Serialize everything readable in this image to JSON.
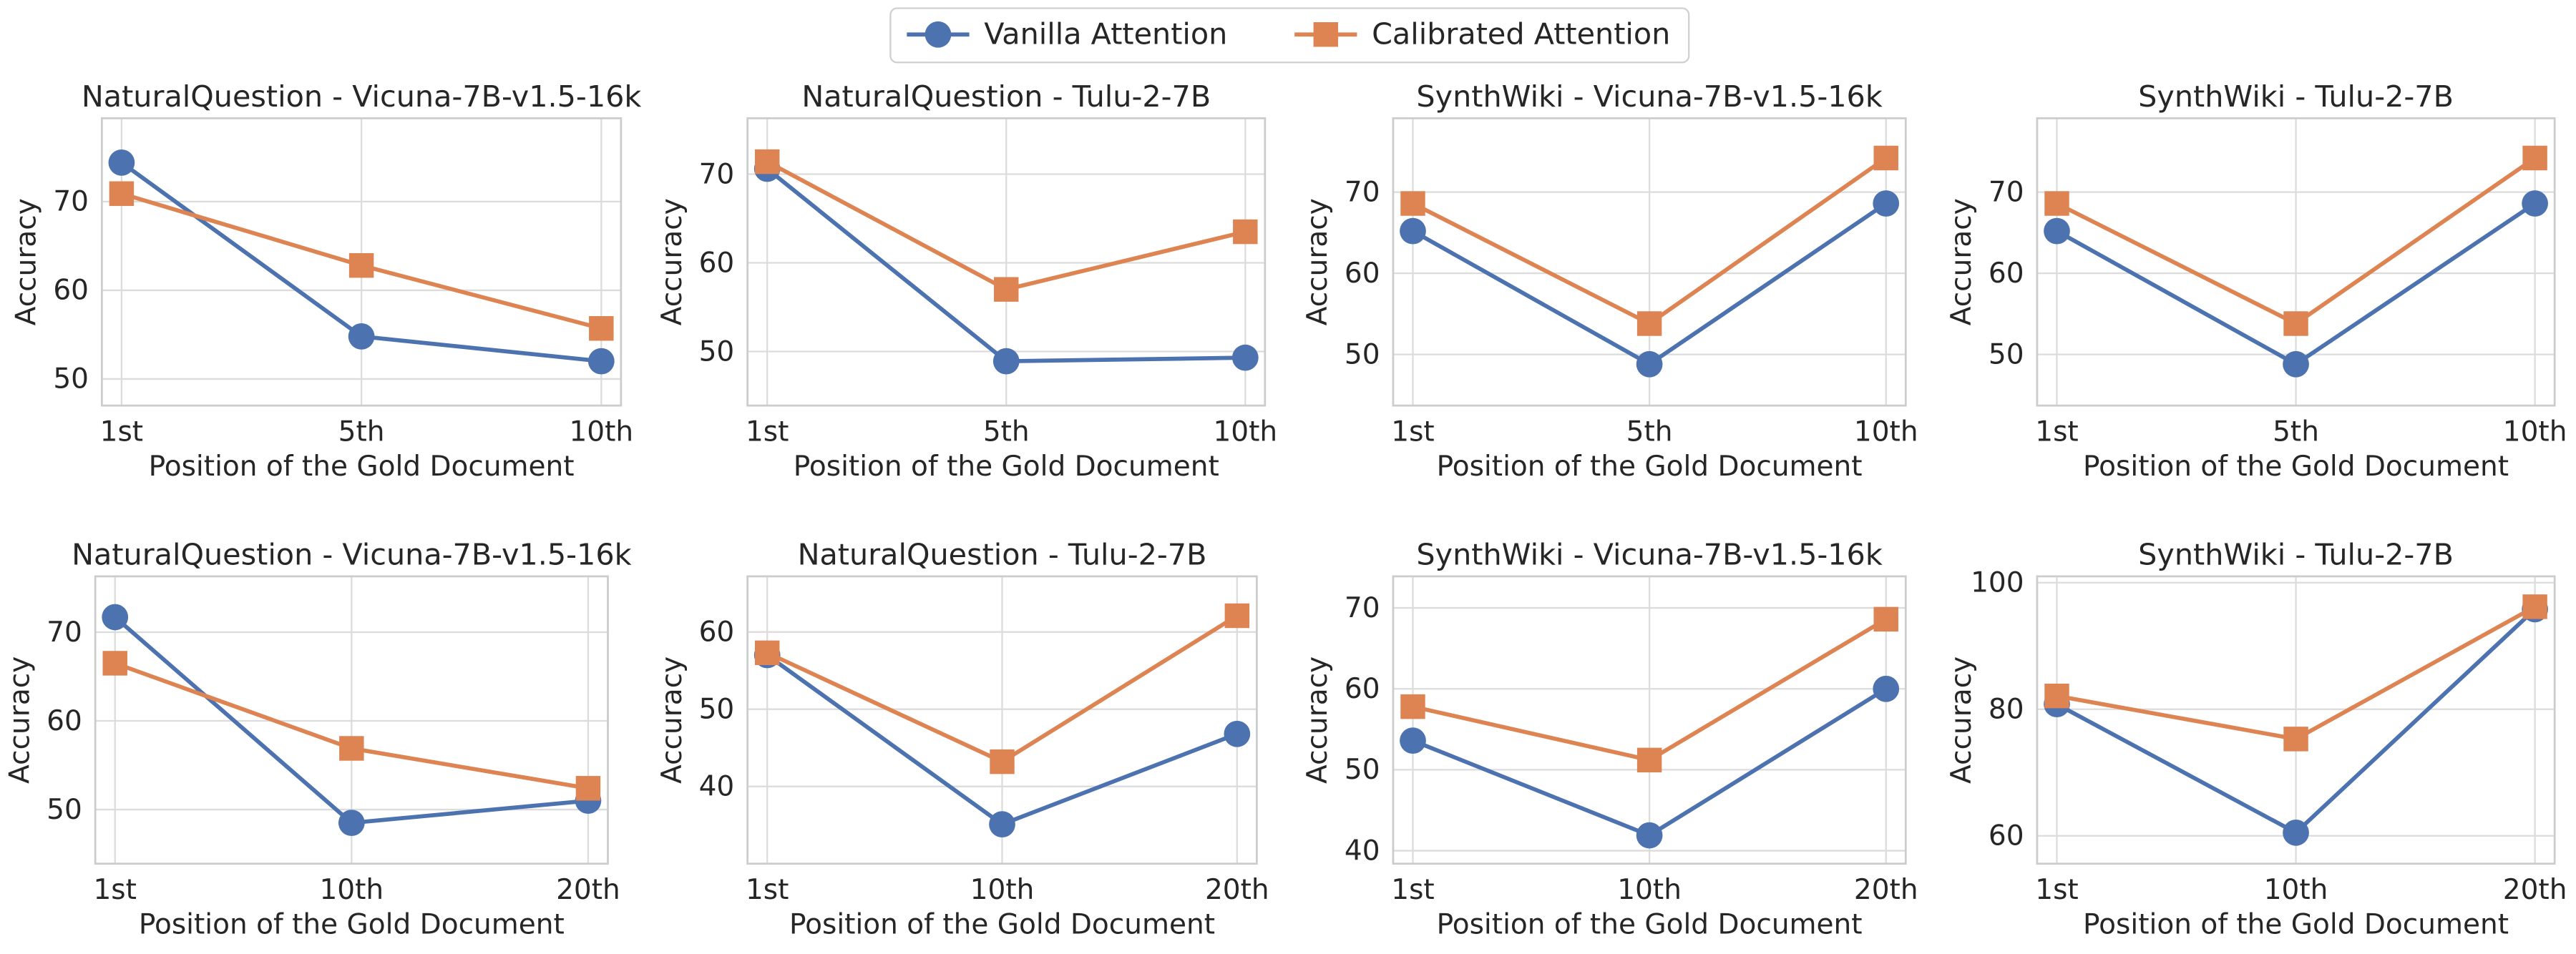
{
  "chart_data": [
    {
      "type": "line",
      "title": "NaturalQuestion - Vicuna-7B-v1.5-16k",
      "xlabel": "Position of the Gold Document",
      "ylabel": "Accuracy",
      "categories": [
        "1st",
        "5th",
        "10th"
      ],
      "series": [
        {
          "name": "Vanilla Attention",
          "color": "#4c72b0",
          "marker": "circle",
          "values": [
            74.4,
            54.8,
            52.0
          ]
        },
        {
          "name": "Calibrated Attention",
          "color": "#dd8452",
          "marker": "square",
          "values": [
            70.9,
            62.8,
            55.7
          ]
        }
      ],
      "ylim": [
        47.0,
        79.4
      ],
      "yticks": [
        50,
        60,
        70
      ],
      "grid": true
    },
    {
      "type": "line",
      "title": "NaturalQuestion - Tulu-2-7B",
      "xlabel": "Position of the Gold Document",
      "ylabel": "Accuracy",
      "categories": [
        "1st",
        "5th",
        "10th"
      ],
      "series": [
        {
          "name": "Vanilla Attention",
          "color": "#4c72b0",
          "marker": "circle",
          "values": [
            70.6,
            48.9,
            49.3
          ]
        },
        {
          "name": "Calibrated Attention",
          "color": "#dd8452",
          "marker": "square",
          "values": [
            71.4,
            57.0,
            63.5
          ]
        }
      ],
      "ylim": [
        43.9,
        76.3
      ],
      "yticks": [
        50,
        60,
        70
      ],
      "grid": true
    },
    {
      "type": "line",
      "title": "SynthWiki - Vicuna-7B-v1.5-16k",
      "xlabel": "Position of the Gold Document",
      "ylabel": "Accuracy",
      "categories": [
        "1st",
        "5th",
        "10th"
      ],
      "series": [
        {
          "name": "Vanilla Attention",
          "color": "#4c72b0",
          "marker": "circle",
          "values": [
            65.2,
            48.8,
            68.6
          ]
        },
        {
          "name": "Calibrated Attention",
          "color": "#dd8452",
          "marker": "square",
          "values": [
            68.6,
            53.8,
            74.2
          ]
        }
      ],
      "ylim": [
        43.7,
        79.1
      ],
      "yticks": [
        50,
        60,
        70
      ],
      "grid": true
    },
    {
      "type": "line",
      "title": "SynthWiki - Tulu-2-7B",
      "xlabel": "Position of the Gold Document",
      "ylabel": "Accuracy",
      "categories": [
        "1st",
        "5th",
        "10th"
      ],
      "series": [
        {
          "name": "Vanilla Attention",
          "color": "#4c72b0",
          "marker": "circle",
          "values": [
            65.2,
            48.8,
            68.6
          ]
        },
        {
          "name": "Calibrated Attention",
          "color": "#dd8452",
          "marker": "square",
          "values": [
            68.6,
            53.8,
            74.2
          ]
        }
      ],
      "ylim": [
        43.7,
        79.1
      ],
      "yticks": [
        50,
        60,
        70
      ],
      "grid": true
    },
    {
      "type": "line",
      "title": "NaturalQuestion - Vicuna-7B-v1.5-16k",
      "xlabel": "Position of the Gold Document",
      "ylabel": "Accuracy",
      "categories": [
        "1st",
        "10th",
        "20th"
      ],
      "series": [
        {
          "name": "Vanilla Attention",
          "color": "#4c72b0",
          "marker": "circle",
          "values": [
            71.7,
            48.5,
            51.0
          ]
        },
        {
          "name": "Calibrated Attention",
          "color": "#dd8452",
          "marker": "square",
          "values": [
            66.5,
            56.9,
            52.4
          ]
        }
      ],
      "ylim": [
        43.9,
        76.3
      ],
      "yticks": [
        50,
        60,
        70
      ],
      "grid": true
    },
    {
      "type": "line",
      "title": "NaturalQuestion - Tulu-2-7B",
      "xlabel": "Position of the Gold Document",
      "ylabel": "Accuracy",
      "categories": [
        "1st",
        "10th",
        "20th"
      ],
      "series": [
        {
          "name": "Vanilla Attention",
          "color": "#4c72b0",
          "marker": "circle",
          "values": [
            57.0,
            35.1,
            46.8
          ]
        },
        {
          "name": "Calibrated Attention",
          "color": "#dd8452",
          "marker": "square",
          "values": [
            57.3,
            43.2,
            62.1
          ]
        }
      ],
      "ylim": [
        30.0,
        67.2
      ],
      "yticks": [
        40,
        50,
        60
      ],
      "grid": true
    },
    {
      "type": "line",
      "title": "SynthWiki - Vicuna-7B-v1.5-16k",
      "xlabel": "Position of the Gold Document",
      "ylabel": "Accuracy",
      "categories": [
        "1st",
        "10th",
        "20th"
      ],
      "series": [
        {
          "name": "Vanilla Attention",
          "color": "#4c72b0",
          "marker": "circle",
          "values": [
            53.6,
            41.9,
            60.0
          ]
        },
        {
          "name": "Calibrated Attention",
          "color": "#dd8452",
          "marker": "square",
          "values": [
            57.8,
            51.2,
            68.6
          ]
        }
      ],
      "ylim": [
        38.4,
        73.9
      ],
      "yticks": [
        40,
        50,
        60,
        70
      ],
      "grid": true
    },
    {
      "type": "line",
      "title": "SynthWiki - Tulu-2-7B",
      "xlabel": "Position of the Gold Document",
      "ylabel": "Accuracy",
      "categories": [
        "1st",
        "10th",
        "20th"
      ],
      "series": [
        {
          "name": "Vanilla Attention",
          "color": "#4c72b0",
          "marker": "circle",
          "values": [
            80.8,
            60.5,
            95.8
          ]
        },
        {
          "name": "Calibrated Attention",
          "color": "#dd8452",
          "marker": "square",
          "values": [
            82.1,
            75.3,
            96.2
          ]
        }
      ],
      "ylim": [
        55.6,
        101.0
      ],
      "yticks": [
        60,
        80,
        100
      ],
      "grid": true
    }
  ]
}
